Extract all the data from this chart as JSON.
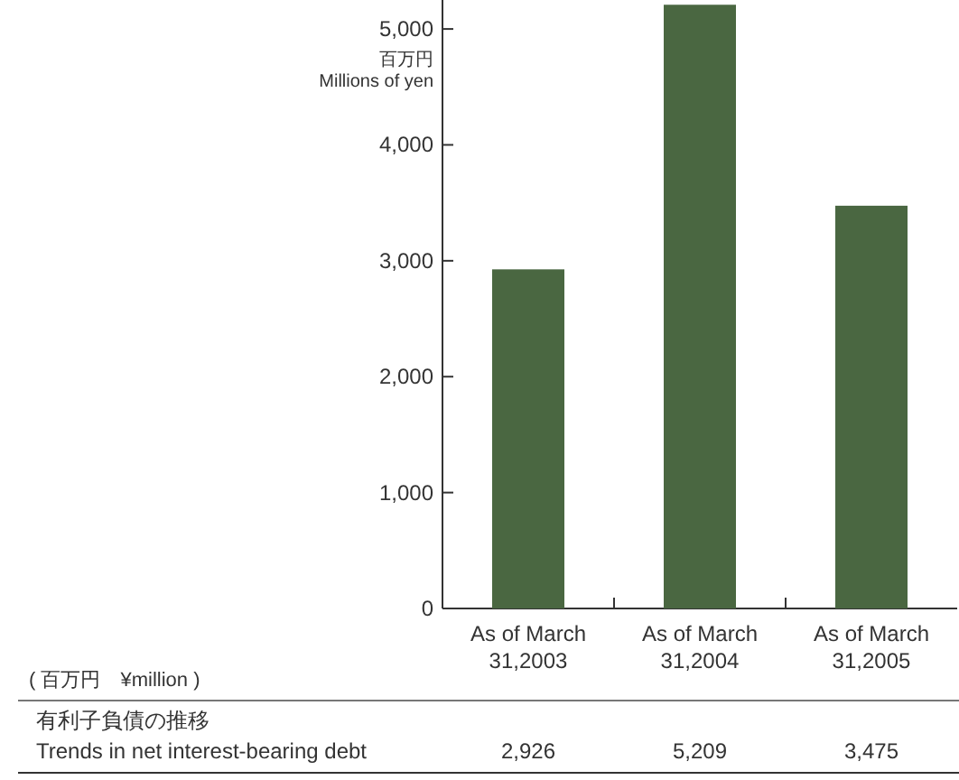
{
  "chart_data": {
    "type": "bar",
    "categories": [
      "As of March\n31,2003",
      "As of March\n31,2004",
      "As of March\n31,2005"
    ],
    "values": [
      2926,
      5209,
      3475
    ],
    "color": "#4a6741",
    "ylim": [
      0,
      5250
    ],
    "yticks": [
      {
        "value": 0,
        "label": "0"
      },
      {
        "value": 1000,
        "label": "1,000"
      },
      {
        "value": 2000,
        "label": "2,000"
      },
      {
        "value": 3000,
        "label": "3,000"
      },
      {
        "value": 4000,
        "label": "4,000"
      },
      {
        "value": 5000,
        "label": "5,000"
      }
    ],
    "ylabel": "百万円\nMillions of yen",
    "value_labels": [
      "2,926",
      "5,209",
      "3,475"
    ],
    "annotations": [
      "( 百万円　¥million )",
      "有利子負債の推移",
      "Trends in net interest-bearing debt"
    ]
  }
}
